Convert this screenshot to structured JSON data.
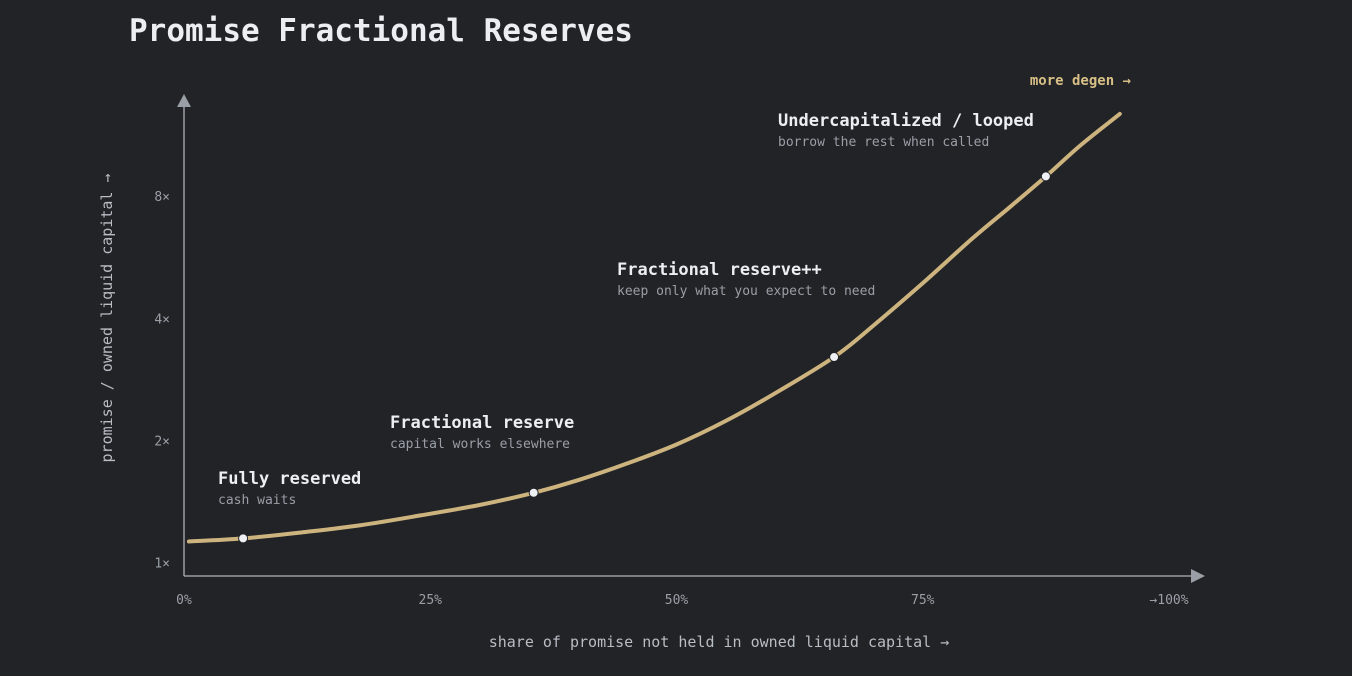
{
  "chart_data": {
    "type": "line",
    "title": "Promise Fractional Reserves",
    "xlabel": "share of promise not held in owned liquid capital →",
    "ylabel": "promise / owned liquid capital →",
    "x_ticks": [
      {
        "value": 0,
        "label": "0%"
      },
      {
        "value": 25,
        "label": "25%"
      },
      {
        "value": 50,
        "label": "50%"
      },
      {
        "value": 75,
        "label": "75%"
      },
      {
        "value": 100,
        "label": "→100%"
      }
    ],
    "y_ticks": [
      {
        "value": 1,
        "label": "1×"
      },
      {
        "value": 2,
        "label": "2×"
      },
      {
        "value": 4,
        "label": "4×"
      },
      {
        "value": 8,
        "label": "8×"
      }
    ],
    "xlim": [
      0,
      100
    ],
    "y_scale": "log",
    "ylim": [
      1,
      15
    ],
    "grid": false,
    "series": [
      {
        "color": "#cdb47f",
        "x": [
          0.5,
          6,
          12,
          18,
          24,
          30,
          35.5,
          40,
          45,
          50,
          55,
          60,
          66,
          70,
          75,
          80,
          84,
          87.5,
          91,
          95
        ],
        "y": [
          1.13,
          1.15,
          1.19,
          1.24,
          1.31,
          1.39,
          1.49,
          1.6,
          1.76,
          1.96,
          2.24,
          2.62,
          3.22,
          3.85,
          4.9,
          6.3,
          7.6,
          8.98,
          10.7,
          12.8
        ]
      }
    ],
    "points": [
      {
        "x": 6,
        "y": 1.15
      },
      {
        "x": 35.5,
        "y": 1.49
      },
      {
        "x": 66,
        "y": 3.22
      },
      {
        "x": 87.5,
        "y": 8.98
      }
    ],
    "annotations": [
      {
        "title": "Fully reserved",
        "subtitle": "cash waits"
      },
      {
        "title": "Fractional reserve",
        "subtitle": "capital works elsewhere"
      },
      {
        "title": "Fractional reserve++",
        "subtitle": "keep only what you expect to need"
      },
      {
        "title": "Undercapitalized / looped",
        "subtitle": "borrow the rest when called"
      }
    ],
    "end_label": "more degen →"
  },
  "colors": {
    "background": "#212327",
    "curve": "#cdb47f",
    "axis": "#b0b3b8",
    "point": "#eef0f3",
    "end_label": "#d8bf86"
  }
}
